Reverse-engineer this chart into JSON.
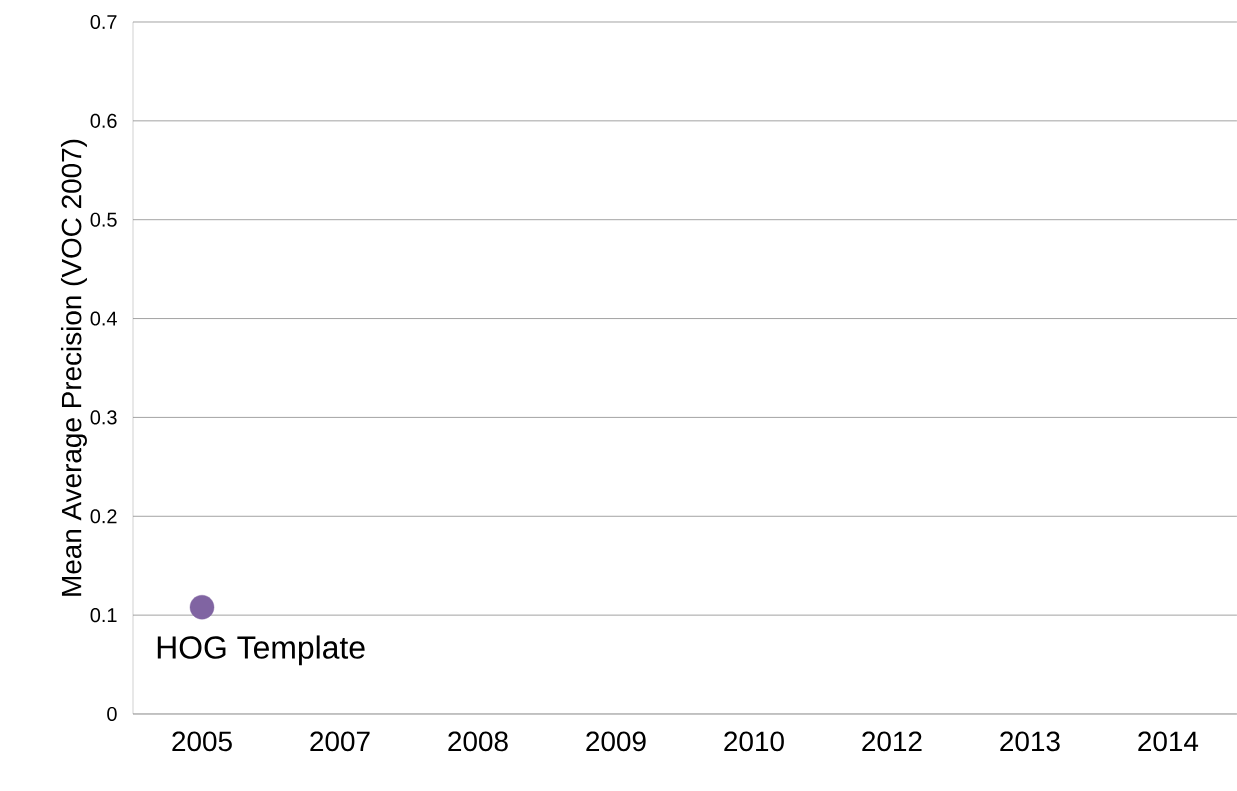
{
  "chart_data": {
    "type": "scatter",
    "ylabel": "Mean Average Precision (VOC 2007)",
    "categories": [
      "2005",
      "2007",
      "2008",
      "2009",
      "2010",
      "2012",
      "2013",
      "2014"
    ],
    "series": [
      {
        "color": "#8064a2",
        "values": [
          0.108,
          null,
          null,
          null,
          null,
          null,
          null,
          null
        ]
      }
    ],
    "ylim": [
      0,
      0.7
    ],
    "yticks": [
      0,
      0.1,
      0.2,
      0.3,
      0.4,
      0.5,
      0.6,
      0.7
    ],
    "grid": "y",
    "marker": "circle",
    "annotations": [
      {
        "text": "HOG Template",
        "x": "2005",
        "y": 0.108
      }
    ]
  }
}
